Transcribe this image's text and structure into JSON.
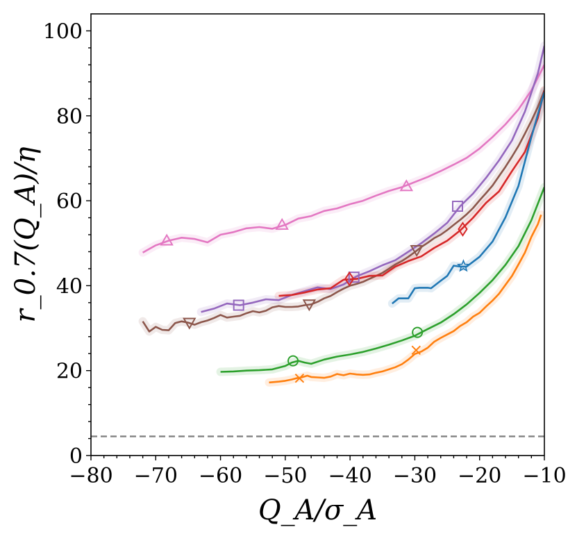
{
  "chart_data": {
    "type": "line",
    "title": "",
    "xlabel": "Q_A/σ_A",
    "ylabel": "r_0.7(Q_A)/η",
    "xlim": [
      -80,
      -10
    ],
    "ylim": [
      0,
      104
    ],
    "x_ticks": [
      -80,
      -70,
      -60,
      -50,
      -40,
      -30,
      -20,
      -10
    ],
    "x_tick_labels": [
      "−80",
      "−70",
      "−60",
      "−50",
      "−40",
      "−30",
      "−20",
      "−10"
    ],
    "y_ticks": [
      0,
      20,
      40,
      60,
      80,
      100
    ],
    "y_tick_labels": [
      "0",
      "20",
      "40",
      "60",
      "80",
      "100"
    ],
    "grid": false,
    "reference_line": {
      "y": 4.5,
      "style": "dashed",
      "color": "#808080"
    },
    "series": [
      {
        "name": "pink-triangle-up",
        "color": "#e377c2",
        "marker": "triangle-up",
        "x": [
          -72,
          -70,
          -68,
          -66,
          -64,
          -62,
          -60,
          -58,
          -56,
          -54,
          -52,
          -50,
          -48,
          -46,
          -44,
          -42,
          -40,
          -38,
          -36,
          -34,
          -32,
          -30,
          -28,
          -26,
          -24,
          -22,
          -20,
          -18,
          -16,
          -14,
          -12,
          -10
        ],
        "y": [
          47.8,
          49.5,
          50.6,
          51.3,
          51.0,
          50.2,
          52.0,
          52.6,
          53.5,
          53.8,
          53.4,
          54.3,
          55.8,
          56.4,
          57.6,
          58.2,
          59.2,
          60.0,
          61.2,
          62.3,
          63.2,
          64.4,
          65.6,
          67.0,
          68.5,
          70.1,
          72.3,
          75.0,
          78.0,
          81.5,
          86.0,
          92.0
        ],
        "marker_points": [
          [
            -68.3,
            50.6
          ],
          [
            -50.5,
            54.3
          ],
          [
            -31.3,
            63.4
          ]
        ]
      },
      {
        "name": "purple-square",
        "color": "#9467bd",
        "marker": "square",
        "x": [
          -63,
          -61,
          -59,
          -57,
          -55,
          -53,
          -51,
          -49,
          -47,
          -45,
          -43,
          -41,
          -39,
          -37,
          -35,
          -33,
          -31,
          -29,
          -27,
          -25,
          -23,
          -21,
          -19,
          -17,
          -15,
          -13,
          -11,
          -10
        ],
        "y": [
          33.8,
          34.6,
          35.8,
          35.4,
          36.0,
          36.8,
          36.6,
          37.8,
          38.7,
          39.6,
          39.2,
          40.3,
          42.2,
          43.4,
          44.8,
          46.0,
          48.0,
          50.0,
          52.3,
          54.8,
          58.7,
          61.7,
          65.4,
          69.5,
          74.2,
          81.0,
          90.0,
          96.5
        ],
        "marker_points": [
          [
            -57.2,
            35.4
          ],
          [
            -39.4,
            42.0
          ],
          [
            -23.4,
            58.7
          ]
        ]
      },
      {
        "name": "brown-triangle-down",
        "color": "#8c564b",
        "marker": "triangle-down",
        "x": [
          -72,
          -71,
          -70,
          -69,
          -68,
          -67,
          -66,
          -65,
          -64,
          -63,
          -62,
          -61,
          -60,
          -59,
          -58,
          -57,
          -56,
          -55,
          -54,
          -53,
          -52,
          -51,
          -50,
          -49,
          -48,
          -47,
          -46,
          -45,
          -44,
          -43,
          -42,
          -41,
          -40,
          -39,
          -38,
          -37,
          -36,
          -35,
          -34,
          -33,
          -32,
          -31,
          -30,
          -29,
          -28,
          -27,
          -26,
          -25,
          -24,
          -23,
          -22,
          -21,
          -20,
          -19,
          -18,
          -17,
          -16,
          -15,
          -14,
          -13,
          -12,
          -11,
          -10
        ],
        "y": [
          31.6,
          29.2,
          30.3,
          29.6,
          29.5,
          31.2,
          31.6,
          31.3,
          30.8,
          31.4,
          31.8,
          32.4,
          33.1,
          32.5,
          32.7,
          32.9,
          33.5,
          34.0,
          33.7,
          34.1,
          34.9,
          35.2,
          35.0,
          35.0,
          35.1,
          35.4,
          35.6,
          36.2,
          37.0,
          37.6,
          38.5,
          39.3,
          40.0,
          40.4,
          40.9,
          41.6,
          42.3,
          43.0,
          44.0,
          45.0,
          45.8,
          46.8,
          47.9,
          49.1,
          50.1,
          51.2,
          52.0,
          53.1,
          54.3,
          55.5,
          56.8,
          58.3,
          60.1,
          61.8,
          63.6,
          65.8,
          68.0,
          70.4,
          72.9,
          75.8,
          78.8,
          82.1,
          86.0
        ],
        "marker_points": [
          [
            -64.8,
            31.3
          ],
          [
            -46.3,
            35.6
          ],
          [
            -29.7,
            48.4
          ]
        ]
      },
      {
        "name": "red-diamond",
        "color": "#d62728",
        "marker": "diamond",
        "x": [
          -51,
          -49,
          -47,
          -45,
          -43,
          -41,
          -39,
          -37,
          -35,
          -33,
          -31,
          -29,
          -27,
          -25,
          -23,
          -21,
          -19,
          -17,
          -15,
          -13,
          -11,
          -10
        ],
        "y": [
          37.6,
          37.8,
          38.4,
          39.1,
          39.4,
          41.4,
          41.6,
          42.3,
          42.4,
          44.5,
          45.8,
          46.9,
          48.9,
          50.6,
          53.0,
          56.0,
          59.5,
          62.2,
          67.0,
          71.5,
          79.5,
          86.0
        ],
        "marker_points": [
          [
            -40.1,
            41.6
          ],
          [
            -22.6,
            53.3
          ]
        ]
      },
      {
        "name": "blue-star",
        "color": "#1f77b4",
        "marker": "star",
        "x": [
          -33.5,
          -32.5,
          -31,
          -30,
          -29.3,
          -28,
          -27.5,
          -26.3,
          -25,
          -24,
          -23,
          -22,
          -20,
          -18,
          -16,
          -14,
          -12,
          -10
        ],
        "y": [
          35.8,
          37.0,
          37.0,
          39.4,
          39.5,
          39.5,
          39.4,
          40.8,
          42.3,
          44.7,
          44.5,
          44.5,
          46.8,
          50.4,
          56.1,
          63.5,
          75.0,
          85.6
        ],
        "marker_points": [
          [
            -22.5,
            44.6
          ]
        ]
      },
      {
        "name": "green-circle",
        "color": "#2ca02c",
        "marker": "circle",
        "x": [
          -60,
          -58,
          -56,
          -54,
          -52,
          -50,
          -49,
          -48,
          -47,
          -46,
          -44,
          -42,
          -40,
          -38,
          -36,
          -34,
          -32,
          -30,
          -28,
          -26,
          -24,
          -22,
          -20,
          -18,
          -16,
          -14,
          -12,
          -10
        ],
        "y": [
          19.7,
          19.8,
          20.0,
          20.1,
          20.3,
          21.1,
          21.9,
          22.3,
          21.9,
          21.6,
          22.6,
          23.3,
          23.8,
          24.4,
          25.2,
          26.1,
          27.1,
          28.2,
          29.8,
          31.3,
          33.3,
          35.6,
          38.3,
          41.3,
          44.9,
          49.3,
          55.4,
          63.2
        ],
        "marker_points": [
          [
            -48.8,
            22.3
          ],
          [
            -29.6,
            29.0
          ]
        ]
      },
      {
        "name": "orange-x",
        "color": "#ff7f0e",
        "marker": "x",
        "x": [
          -52.5,
          -51,
          -50,
          -49,
          -48.3,
          -47.5,
          -46.6,
          -46,
          -45,
          -44,
          -43,
          -42,
          -41,
          -40,
          -39,
          -38,
          -37,
          -36,
          -35,
          -34,
          -33,
          -32,
          -31,
          -30,
          -29,
          -28,
          -27,
          -26,
          -25,
          -24,
          -23,
          -22,
          -21,
          -20,
          -19,
          -18,
          -17,
          -16,
          -15,
          -14,
          -13,
          -12,
          -11,
          -10.5
        ],
        "y": [
          17.2,
          17.4,
          17.6,
          17.9,
          18.2,
          18.4,
          18.8,
          18.5,
          18.4,
          18.3,
          18.6,
          19.2,
          18.9,
          19.3,
          19.1,
          19.0,
          19.1,
          19.5,
          19.8,
          20.3,
          20.8,
          21.5,
          22.6,
          23.9,
          24.5,
          25.4,
          26.8,
          27.7,
          28.5,
          29.3,
          30.5,
          31.4,
          32.7,
          33.6,
          35.1,
          36.5,
          38.1,
          40.2,
          42.3,
          45.0,
          47.8,
          51.5,
          54.5,
          56.7
        ],
        "marker_points": [
          [
            -47.8,
            18.2
          ],
          [
            -29.8,
            24.8
          ]
        ]
      }
    ]
  }
}
